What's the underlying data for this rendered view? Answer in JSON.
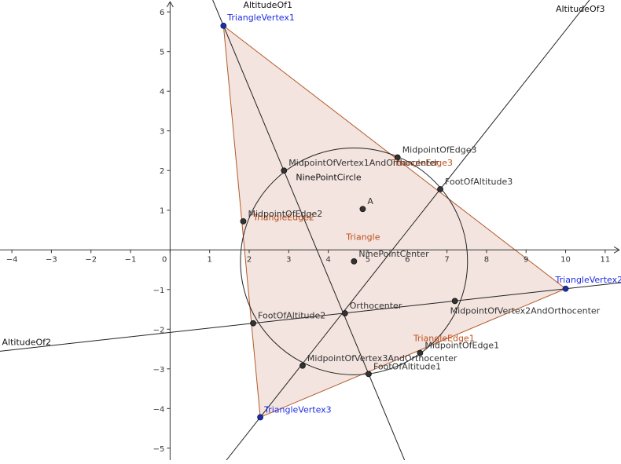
{
  "view": {
    "x_range": [
      -4.3,
      11.4
    ],
    "y_range": [
      -5.3,
      6.3
    ],
    "x_ticks": [
      -4,
      -3,
      -2,
      -1,
      0,
      1,
      2,
      3,
      4,
      5,
      6,
      7,
      8,
      9,
      10,
      11
    ],
    "y_ticks": [
      -5,
      -4,
      -3,
      -2,
      -1,
      0,
      1,
      2,
      3,
      4,
      5,
      6
    ],
    "grid": false
  },
  "colors": {
    "triangle_fill": "#f3e4df",
    "triangle_edge": "#b35a2a",
    "vertex_point": "#1f2ea0",
    "vertex_label": "#1f2ee0",
    "point": "#333333",
    "point_label": "#333333",
    "line": "#222222",
    "edge_label": "#c0501c"
  },
  "triangle": {
    "label": "Triangle",
    "label_pos": [
      4.45,
      0.25
    ],
    "vertices": [
      {
        "name": "TriangleVertex1",
        "x": 1.35,
        "y": 5.65
      },
      {
        "name": "TriangleVertex2",
        "x": 10.0,
        "y": -0.98
      },
      {
        "name": "TriangleVertex3",
        "x": 2.28,
        "y": -4.22
      }
    ],
    "edges": [
      {
        "name": "TriangleEdge1",
        "label_pos": [
          6.15,
          -2.3
        ]
      },
      {
        "name": "TriangleEdge2",
        "label_pos": [
          2.1,
          0.75
        ]
      },
      {
        "name": "TriangleEdge3",
        "label_pos": [
          5.6,
          2.12
        ]
      }
    ]
  },
  "lines": [
    {
      "name": "AltitudeOf1",
      "p1": [
        1.35,
        5.65
      ],
      "p2": [
        5.02,
        -3.13
      ],
      "label_pos": [
        1.85,
        6.1
      ]
    },
    {
      "name": "AltitudeOf2",
      "p1": [
        10.0,
        -0.98
      ],
      "p2": [
        2.1,
        -1.85
      ],
      "label_pos": [
        -4.25,
        -2.4
      ]
    },
    {
      "name": "AltitudeOf3",
      "p1": [
        2.28,
        -4.22
      ],
      "p2": [
        6.83,
        1.53
      ],
      "label_pos": [
        9.75,
        6.0
      ]
    }
  ],
  "circle": {
    "name": "NinePointCircle",
    "center": [
      4.65,
      -0.29
    ],
    "radius": 2.87,
    "label_pos": [
      3.18,
      1.76
    ]
  },
  "points": [
    {
      "name": "MidpointOfEdge1",
      "x": 6.32,
      "y": -2.6,
      "label_dx": 6,
      "label_dy": -6
    },
    {
      "name": "MidpointOfEdge2",
      "x": 1.85,
      "y": 0.72,
      "label_dx": 6,
      "label_dy": -6
    },
    {
      "name": "MidpointOfEdge3",
      "x": 5.75,
      "y": 2.33,
      "label_dx": 6,
      "label_dy": -6
    },
    {
      "name": "FootOfAltitude1",
      "x": 5.02,
      "y": -3.13,
      "label_dx": 6,
      "label_dy": -6
    },
    {
      "name": "FootOfAltitude2",
      "x": 2.1,
      "y": -1.85,
      "label_dx": 6,
      "label_dy": -6
    },
    {
      "name": "FootOfAltitude3",
      "x": 6.83,
      "y": 1.53,
      "label_dx": 6,
      "label_dy": -6
    },
    {
      "name": "Orthocenter",
      "x": 4.42,
      "y": -1.6,
      "label_dx": 6,
      "label_dy": -6
    },
    {
      "name": "MidpointOfVertex1AndOrthocenter",
      "x": 2.88,
      "y": 2.0,
      "label_dx": 6,
      "label_dy": -6
    },
    {
      "name": "MidpointOfVertex2AndOrthocenter",
      "x": 7.2,
      "y": -1.29,
      "label_dx": -6,
      "label_dy": 16
    },
    {
      "name": "MidpointOfVertex3AndOrthocenter",
      "x": 3.35,
      "y": -2.92,
      "label_dx": 6,
      "label_dy": -6
    },
    {
      "name": "NinePointCenter",
      "x": 4.65,
      "y": -0.29,
      "label_dx": 6,
      "label_dy": -6
    },
    {
      "name": "A",
      "x": 4.87,
      "y": 1.03,
      "label_dx": 6,
      "label_dy": -6
    }
  ]
}
